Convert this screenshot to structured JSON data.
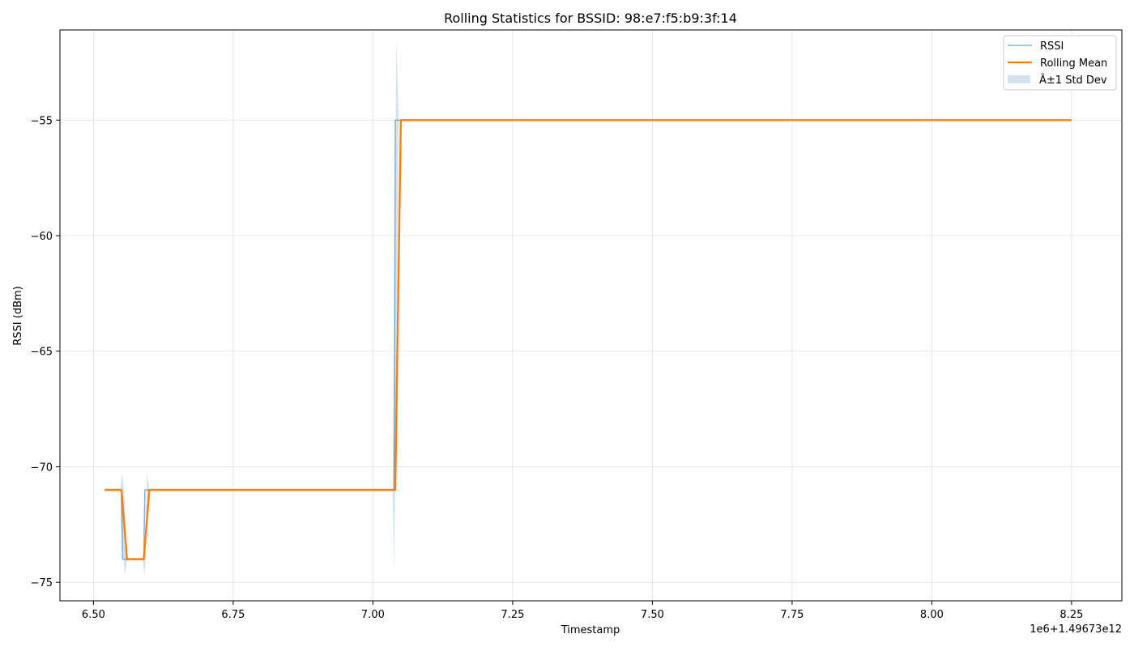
{
  "chart_data": {
    "type": "line",
    "title": "Rolling Statistics for BSSID: 98:e7:f5:b9:3f:14",
    "xlabel": "Timestamp",
    "ylabel": "RSSI (dBm)",
    "x_offset_label": "1e6+1.49673e12",
    "xlim": [
      6.44,
      8.34
    ],
    "ylim": [
      -75.8,
      -51.1
    ],
    "x_ticks": [
      6.5,
      6.75,
      7.0,
      7.25,
      7.5,
      7.75,
      8.0,
      8.25
    ],
    "x_tick_labels": [
      "6.50",
      "6.75",
      "7.00",
      "7.25",
      "7.50",
      "7.75",
      "8.00",
      "8.25"
    ],
    "y_ticks": [
      -75,
      -70,
      -65,
      -60,
      -55
    ],
    "y_tick_labels": [
      "−75",
      "−70",
      "−65",
      "−60",
      "−55"
    ],
    "grid": true,
    "legend_position": "top-right",
    "legend": [
      "RSSI",
      "Rolling Mean",
      "Â±1 Std Dev"
    ],
    "colors": {
      "rssi": "#1f77b4",
      "rolling_mean": "#ff7f0e",
      "std_band": "#a6c8e0"
    },
    "series": [
      {
        "name": "RSSI",
        "x": [
          6.52,
          6.55,
          6.552,
          6.59,
          6.592,
          6.6,
          7.038,
          7.04,
          7.05,
          8.25
        ],
        "values": [
          -71,
          -71,
          -74,
          -74,
          -71,
          -71,
          -71,
          -55,
          -55,
          -55
        ]
      },
      {
        "name": "Rolling Mean",
        "x": [
          6.52,
          6.55,
          6.56,
          6.59,
          6.6,
          7.04,
          7.05,
          8.25
        ],
        "values": [
          -71,
          -71,
          -74,
          -74,
          -71,
          -71,
          -55,
          -55
        ]
      }
    ],
    "std_band": {
      "name": "Â±1 Std Dev",
      "x": [
        6.52,
        6.548,
        6.552,
        6.556,
        6.56,
        6.565,
        6.588,
        6.592,
        6.596,
        6.6,
        6.605,
        7.035,
        7.038,
        7.042,
        7.046,
        7.05,
        7.055,
        8.25
      ],
      "upper": [
        -71,
        -71,
        -70.3,
        -71.5,
        -74,
        -74,
        -74,
        -73.5,
        -70.3,
        -71,
        -71,
        -71,
        -65,
        -51.5,
        -55,
        -55,
        -55,
        -55
      ],
      "lower": [
        -71,
        -71,
        -73.5,
        -74.7,
        -74,
        -74,
        -74,
        -74.7,
        -71.5,
        -71,
        -71,
        -71,
        -74.5,
        -66,
        -55,
        -55,
        -55,
        -55
      ]
    }
  }
}
